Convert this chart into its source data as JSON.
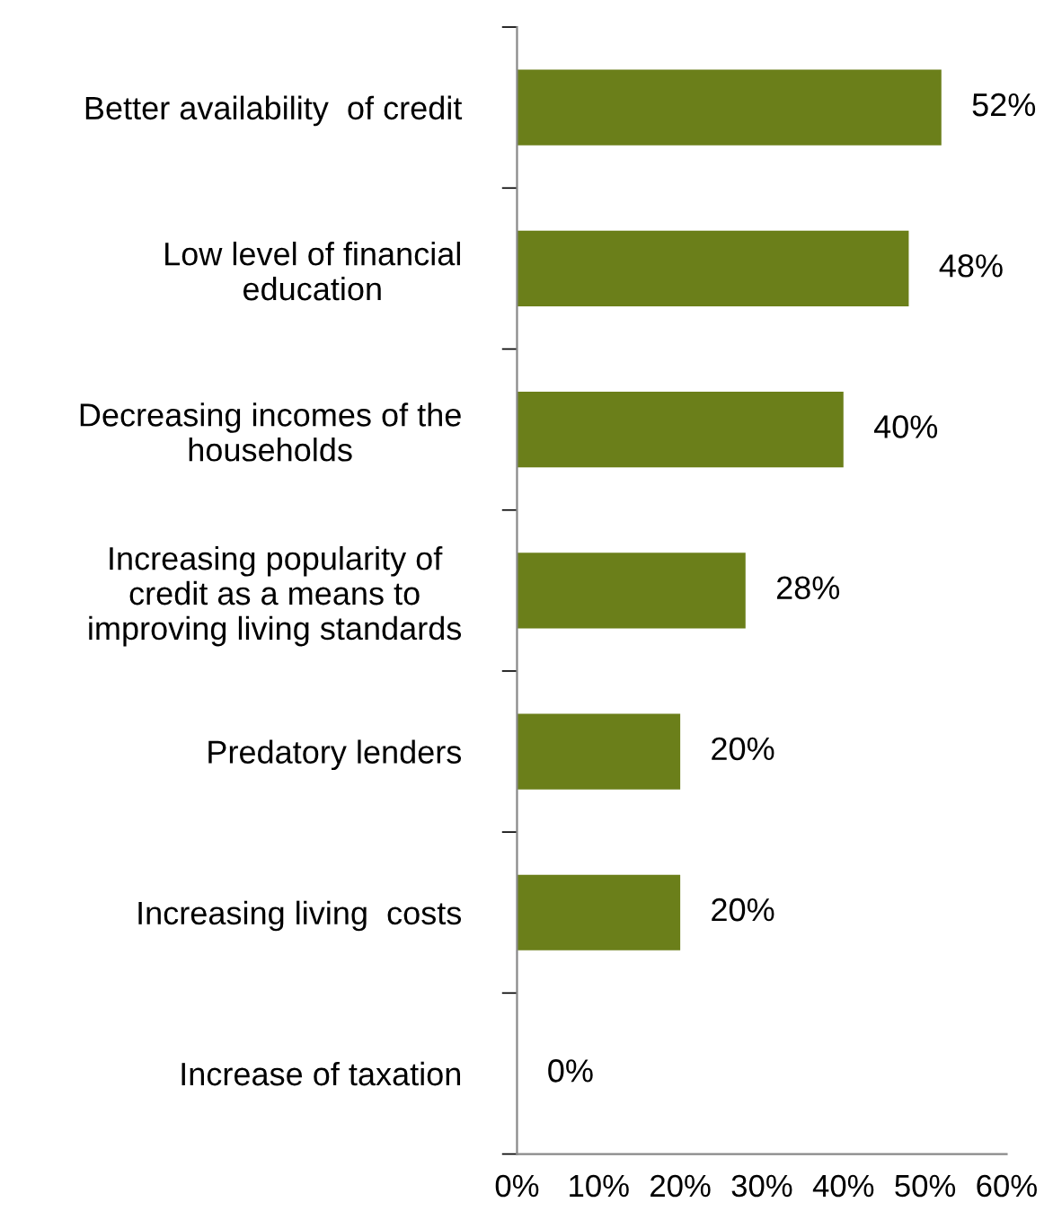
{
  "chart_data": {
    "type": "bar",
    "orientation": "horizontal",
    "categories": [
      "Better availability  of credit",
      "Low level of financial\neducation",
      "Decreasing incomes of the\nhouseholds",
      "Increasing popularity of\ncredit as a means to\nimproving living standards",
      "Predatory lenders",
      "Increasing living  costs",
      "Increase of taxation"
    ],
    "values": [
      52,
      48,
      40,
      28,
      20,
      20,
      0
    ],
    "value_labels": [
      "52%",
      "48%",
      "40%",
      "28%",
      "20%",
      "20%",
      "0%"
    ],
    "color": "#6b7f1a",
    "xlim": [
      0,
      60
    ],
    "xticks": [
      {
        "value": 0,
        "label": "0%"
      },
      {
        "value": 10,
        "label": "10%"
      },
      {
        "value": 20,
        "label": "20%"
      },
      {
        "value": 30,
        "label": "30%"
      },
      {
        "value": 40,
        "label": "40%"
      },
      {
        "value": 50,
        "label": "50%"
      },
      {
        "value": 60,
        "label": "60%"
      }
    ],
    "grid": false,
    "legend": false
  }
}
